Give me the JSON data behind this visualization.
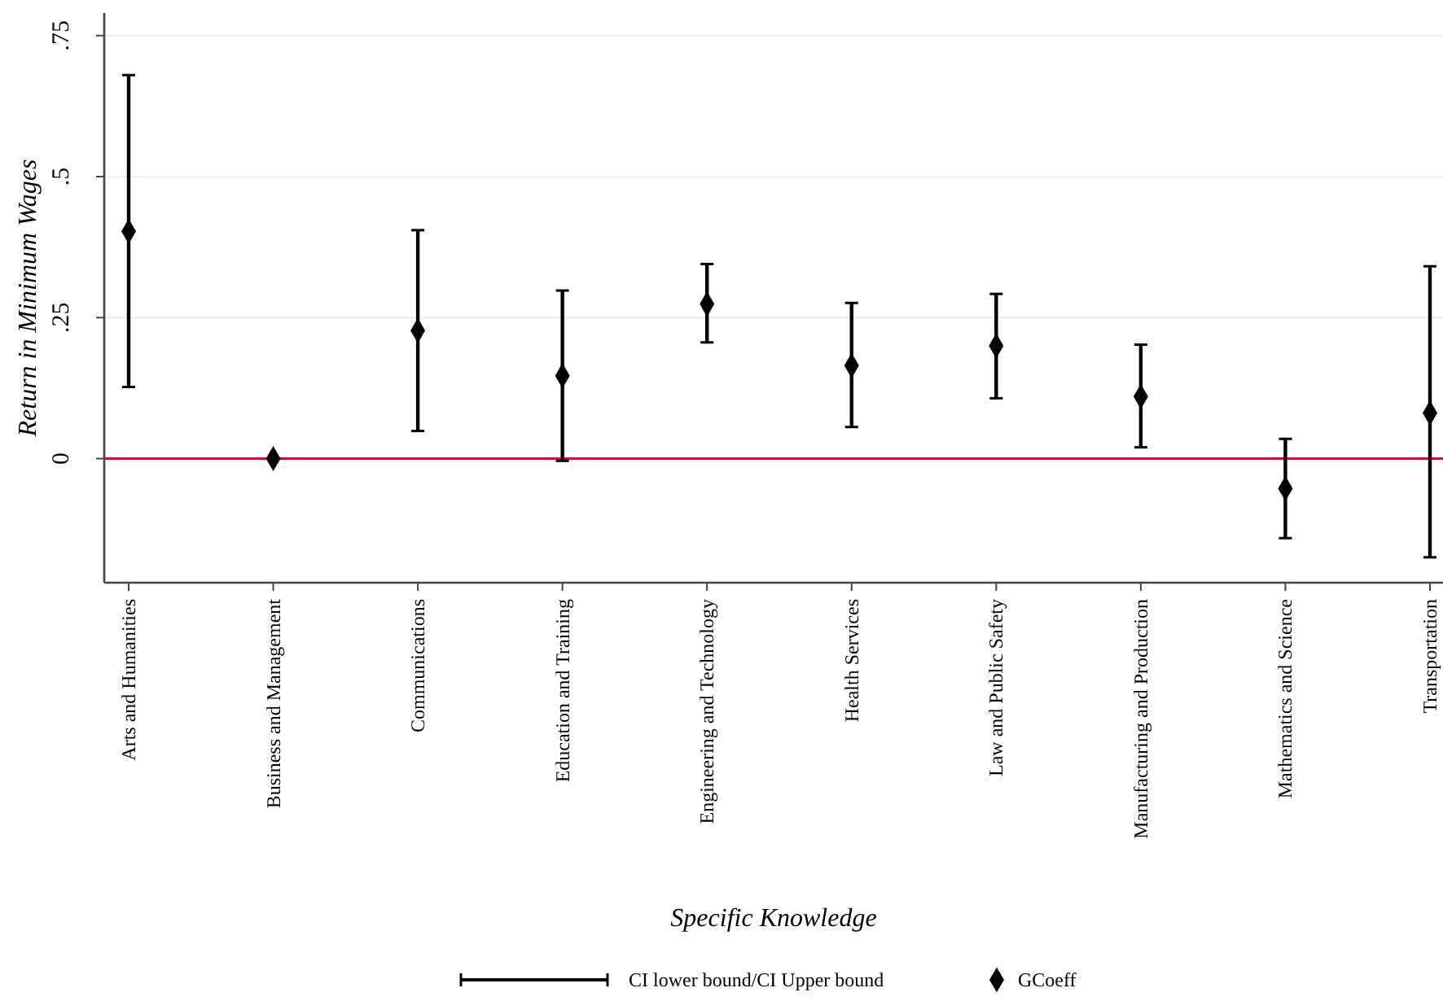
{
  "chart_data": {
    "type": "scatter",
    "xlabel": "Specific Knowledge",
    "ylabel": "Return in Minimum Wages",
    "categories": [
      "Arts and Humanities",
      "Business and Management",
      "Communications",
      "Education and Training",
      "Engineering and Technology",
      "Health Services",
      "Law and Public Safety",
      "Manufacturing and Production",
      "Mathematics and Science",
      "Transportation"
    ],
    "series": [
      {
        "name": "GCoeff",
        "color": "#000000",
        "values": [
          0.403,
          0,
          0.227,
          0.147,
          0.274,
          0.165,
          0.2,
          0.11,
          -0.053,
          0.081
        ],
        "errors": [
          [
            0.127,
            0.68
          ],
          null,
          [
            0.049,
            0.405
          ],
          [
            -0.004,
            0.298
          ],
          [
            0.206,
            0.345
          ],
          [
            0.056,
            0.276
          ],
          [
            0.107,
            0.292
          ],
          [
            0.02,
            0.202
          ],
          [
            -0.141,
            0.035
          ],
          [
            -0.175,
            0.341
          ]
        ]
      }
    ],
    "ylim": [
      -0.22,
      0.79
    ],
    "yticks": [
      0,
      {
        "value": 0.25,
        "label": ".25"
      },
      {
        "value": 0.5,
        "label": ".5"
      },
      {
        "value": 0.75,
        "label": ".75"
      }
    ],
    "grid": "y",
    "marker": "diamond",
    "legend": "bottom",
    "ref_lines": [
      {
        "axis": "y",
        "value": 0,
        "color": "#c3123f"
      }
    ],
    "annotations": [
      "CI lower bound/CI Upper bound"
    ]
  }
}
